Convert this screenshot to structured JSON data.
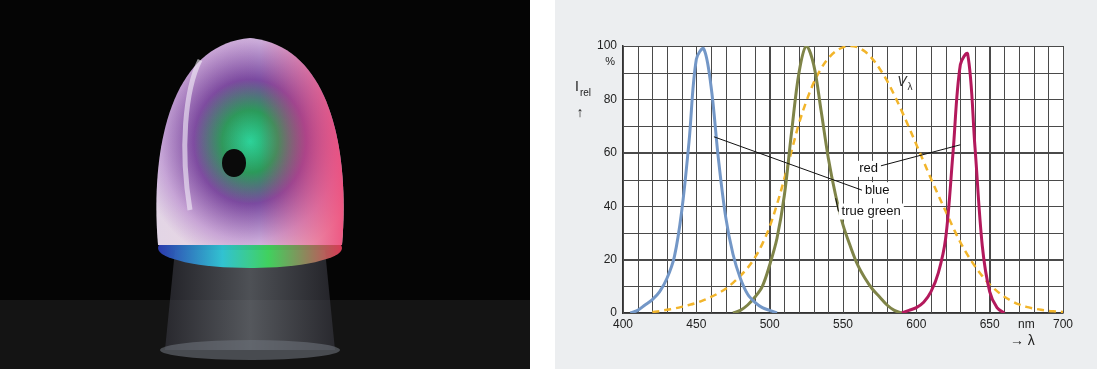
{
  "chart_data": {
    "type": "line",
    "x": [
      400,
      405,
      410,
      415,
      420,
      425,
      430,
      435,
      440,
      445,
      450,
      455,
      460,
      465,
      470,
      475,
      480,
      485,
      490,
      495,
      500,
      505,
      510,
      515,
      520,
      525,
      530,
      535,
      540,
      545,
      550,
      555,
      560,
      565,
      570,
      575,
      580,
      585,
      590,
      595,
      600,
      605,
      610,
      615,
      620,
      625,
      630,
      635,
      640,
      645,
      650,
      655,
      660,
      665,
      670,
      675,
      680,
      685,
      690,
      695,
      700
    ],
    "series": [
      {
        "name": "blue",
        "color": "#7397c7",
        "line_style": "solid",
        "values": [
          null,
          0,
          1,
          3,
          5,
          8,
          13,
          21,
          38,
          64,
          95,
          99,
          85,
          58,
          36,
          22,
          13,
          7,
          4,
          2,
          1,
          0,
          null,
          null,
          null,
          null,
          null,
          null,
          null,
          null,
          null,
          null,
          null,
          null,
          null,
          null,
          null,
          null,
          null,
          null,
          null,
          null,
          null,
          null,
          null,
          null,
          null,
          null,
          null,
          null,
          null,
          null,
          null,
          null,
          null,
          null,
          null,
          null,
          null,
          null,
          null
        ]
      },
      {
        "name": "true green",
        "color": "#7f8448",
        "line_style": "solid",
        "values": [
          null,
          null,
          null,
          null,
          null,
          null,
          null,
          null,
          null,
          null,
          null,
          null,
          null,
          null,
          null,
          0,
          1,
          3,
          6,
          10,
          18,
          28,
          44,
          68,
          90,
          100,
          93,
          76,
          58,
          44,
          33,
          25,
          18,
          13,
          9,
          6,
          3,
          1,
          0,
          null,
          null,
          null,
          null,
          null,
          null,
          null,
          null,
          null,
          null,
          null,
          null,
          null,
          null,
          null,
          null,
          null,
          null,
          null,
          null,
          null,
          null
        ]
      },
      {
        "name": "red",
        "color": "#b3195c",
        "line_style": "solid",
        "values": [
          null,
          null,
          null,
          null,
          null,
          null,
          null,
          null,
          null,
          null,
          null,
          null,
          null,
          null,
          null,
          null,
          null,
          null,
          null,
          null,
          null,
          null,
          null,
          null,
          null,
          null,
          null,
          null,
          null,
          null,
          null,
          null,
          null,
          null,
          null,
          null,
          null,
          null,
          0,
          1,
          2,
          4,
          8,
          15,
          28,
          60,
          93,
          97,
          62,
          25,
          8,
          2,
          0,
          null,
          null,
          null,
          null,
          null,
          null,
          null,
          null
        ]
      },
      {
        "name": "Vλ",
        "color": "#f2b52b",
        "line_style": "dashed",
        "values": [
          null,
          null,
          null,
          null,
          0.4,
          0.7,
          1.2,
          1.7,
          2.3,
          3,
          3.8,
          4.8,
          6,
          7.4,
          9.1,
          11.3,
          13.9,
          16.9,
          20.8,
          25.9,
          32.3,
          40.7,
          50.3,
          60.8,
          71,
          79.3,
          86.2,
          91.5,
          95.4,
          98,
          99.5,
          100,
          99.5,
          97.9,
          95.2,
          91.5,
          87,
          81.6,
          75.7,
          69.5,
          63.1,
          56.7,
          50.3,
          44.1,
          38.1,
          32.1,
          26.5,
          21.7,
          17.5,
          13.8,
          10.7,
          8.2,
          6.1,
          4.5,
          3.2,
          2.3,
          1.7,
          1.2,
          0.8,
          0.6,
          0.4
        ]
      }
    ],
    "xlim": [
      400,
      700
    ],
    "xticks": [
      400,
      450,
      500,
      550,
      600,
      650,
      700
    ],
    "ylim": [
      0,
      100
    ],
    "yticks": [
      0,
      20,
      40,
      60,
      80,
      100
    ],
    "ylabel": "Irel",
    "ylabel_arrow": "↑",
    "yunit": "%",
    "xunit": "nm",
    "xlabel": "→ λ",
    "grid": true
  }
}
